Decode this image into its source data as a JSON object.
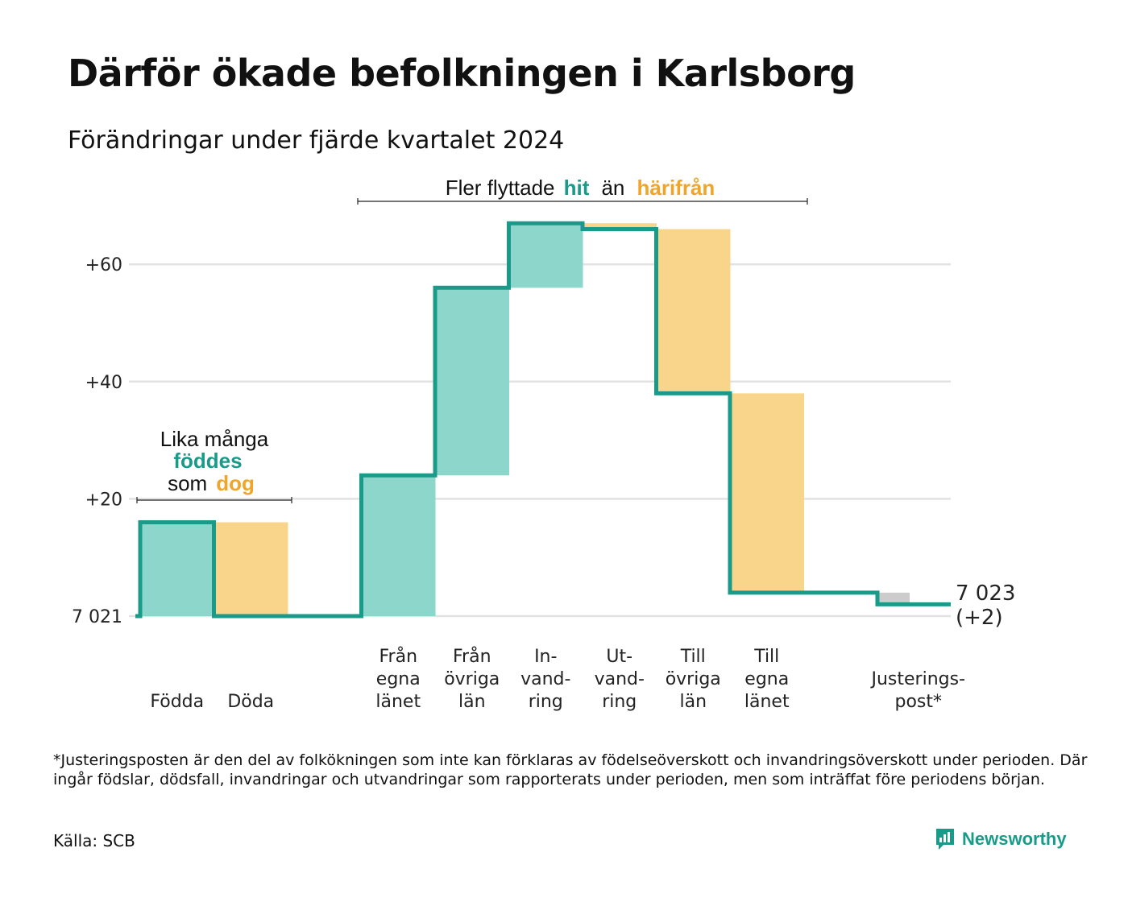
{
  "title": "Därför ökade befolkningen i Karlsborg",
  "subtitle": "Förändringar under fjärde kvartalet 2024",
  "footnote": "*Justeringsposten är den del av folkökningen som inte kan förklaras av födelseöverskott och invandringsöverskott under perioden. Där ingår födslar, dödsfall, invandringar och utvandringar som rapporterats under perioden, men som inträffat före periodens början.",
  "source": "Källa: SCB",
  "brand": "Newsworthy",
  "colors": {
    "inflow": "#8dd6cb",
    "outflow": "#f9d48b",
    "adjustment": "#cccccc",
    "line": "#1a9a88",
    "accent_in": "#1a9a88",
    "accent_out": "#f0a52a",
    "grid": "#e2e2e2"
  },
  "annotations": {
    "birth_death": {
      "line1": "Lika många",
      "word_in": "föddes",
      "word_som": "som",
      "word_out": "dog"
    },
    "migration": {
      "prefix": "Fler flyttade",
      "word_in": "hit",
      "middle": "än",
      "word_out": "härifrån"
    }
  },
  "chart_data": {
    "type": "waterfall",
    "title": "Därför ökade befolkningen i Karlsborg",
    "subtitle": "Förändringar under fjärde kvartalet 2024",
    "baseline_label": "7 021",
    "end_label_lines": [
      "7 023",
      "(+2)"
    ],
    "ylim": [
      0,
      68
    ],
    "y_ticks": [
      {
        "value": 0,
        "label": "7 021"
      },
      {
        "value": 20,
        "label": "+20"
      },
      {
        "value": 40,
        "label": "+40"
      },
      {
        "value": 60,
        "label": "+60"
      }
    ],
    "grid": true,
    "items": [
      {
        "label_lines": [
          "Födda"
        ],
        "start": 0,
        "end": 16,
        "kind": "in",
        "slot": 0
      },
      {
        "label_lines": [
          "Döda"
        ],
        "start": 16,
        "end": 0,
        "kind": "out",
        "slot": 1
      },
      {
        "label_lines": [
          "Från",
          "egna",
          "länet"
        ],
        "start": 0,
        "end": 24,
        "kind": "in",
        "slot": 3
      },
      {
        "label_lines": [
          "Från",
          "övriga",
          "län"
        ],
        "start": 24,
        "end": 56,
        "kind": "in",
        "slot": 4
      },
      {
        "label_lines": [
          "In-",
          "vand-",
          "ring"
        ],
        "start": 56,
        "end": 67,
        "kind": "in",
        "slot": 5
      },
      {
        "label_lines": [
          "Ut-",
          "vand-",
          "ring"
        ],
        "start": 67,
        "end": 66,
        "kind": "out",
        "slot": 6
      },
      {
        "label_lines": [
          "Till",
          "övriga",
          "län"
        ],
        "start": 66,
        "end": 38,
        "kind": "out",
        "slot": 7
      },
      {
        "label_lines": [
          "Till",
          "egna",
          "länet"
        ],
        "start": 38,
        "end": 4,
        "kind": "out",
        "slot": 8
      },
      {
        "label_lines": [
          "Justerings-",
          "post*"
        ],
        "start": 4,
        "end": 2,
        "kind": "adj",
        "slot": 10
      }
    ],
    "final_value": 2
  }
}
